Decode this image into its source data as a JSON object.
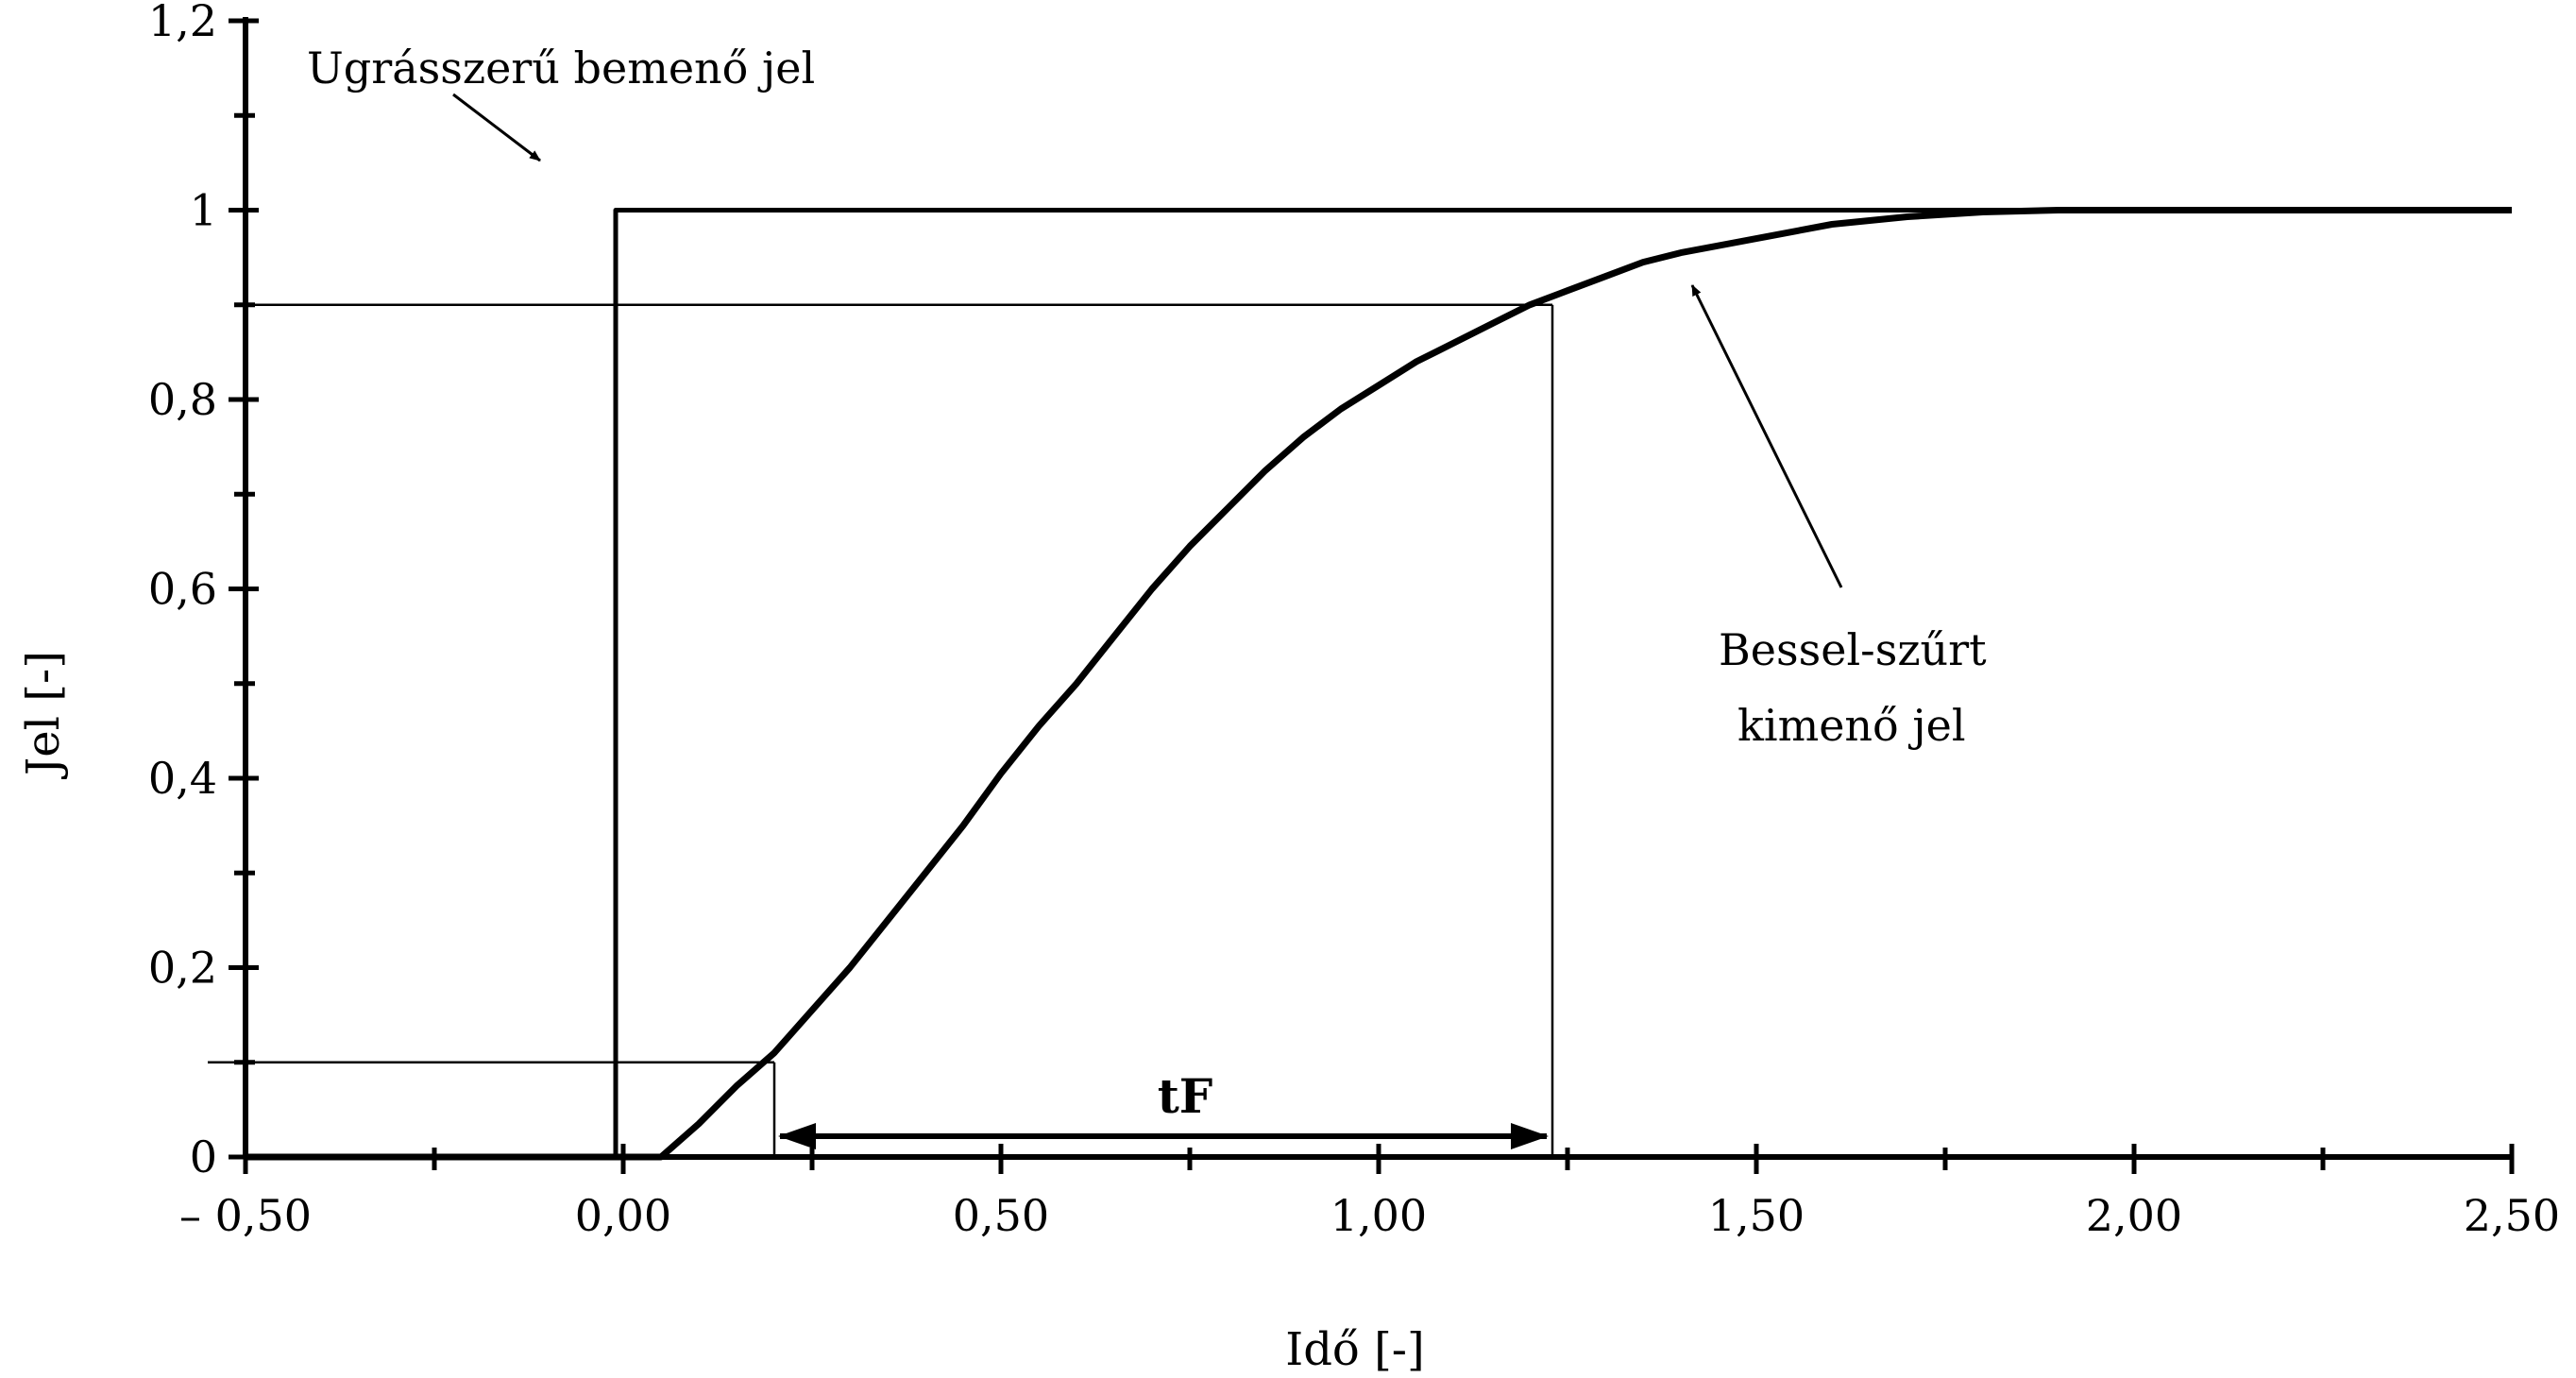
{
  "chart_data": {
    "type": "line",
    "title": "",
    "xlabel": "Idő [-]",
    "ylabel": "Jel [-]",
    "xlim": [
      -0.5,
      2.5
    ],
    "ylim": [
      0,
      1.2
    ],
    "grid": false,
    "x_ticks": [
      -0.5,
      0,
      0.5,
      1,
      1.5,
      2,
      2.5
    ],
    "x_tick_labels": [
      "– 0,50",
      "0,00",
      "0,50",
      "1,00",
      "1,50",
      "2,00",
      "2,50"
    ],
    "y_ticks": [
      0,
      0.2,
      0.4,
      0.6,
      0.8,
      1,
      1.2
    ],
    "y_tick_labels": [
      "0",
      "0,2",
      "0,4",
      "0,6",
      "0,8",
      "1",
      "1,2"
    ],
    "series": [
      {
        "x": [
          -0.5,
          -0.01,
          -0.01,
          0.0,
          0.0,
          2.5
        ],
        "y": [
          0,
          0,
          1,
          1,
          1,
          1
        ]
      },
      {
        "x": [
          -0.5,
          0.05,
          0.1,
          0.15,
          0.2,
          0.25,
          0.3,
          0.35,
          0.4,
          0.45,
          0.5,
          0.55,
          0.6,
          0.65,
          0.7,
          0.75,
          0.8,
          0.85,
          0.9,
          0.95,
          1.0,
          1.05,
          1.1,
          1.15,
          1.2,
          1.25,
          1.3,
          1.35,
          1.4,
          1.5,
          1.6,
          1.7,
          1.8,
          1.9,
          2.0,
          2.5
        ],
        "y": [
          0,
          0,
          0.035,
          0.075,
          0.11,
          0.155,
          0.2,
          0.25,
          0.3,
          0.35,
          0.405,
          0.455,
          0.5,
          0.55,
          0.6,
          0.645,
          0.685,
          0.725,
          0.76,
          0.79,
          0.815,
          0.84,
          0.86,
          0.88,
          0.9,
          0.915,
          0.93,
          0.945,
          0.955,
          0.97,
          0.985,
          0.993,
          0.998,
          1.0,
          1.0,
          1.0
        ]
      }
    ],
    "reference_lines": {
      "y_90": 0.9,
      "y_10": 0.1,
      "t_10": 0.2,
      "t_90": 1.23
    },
    "annotations": {
      "input_label": "Ugrásszerű bemenő jel",
      "output_label_line1": "Bessel-szűrt",
      "output_label_line2": "kimenő jel",
      "rise_time_label": "tF"
    }
  }
}
